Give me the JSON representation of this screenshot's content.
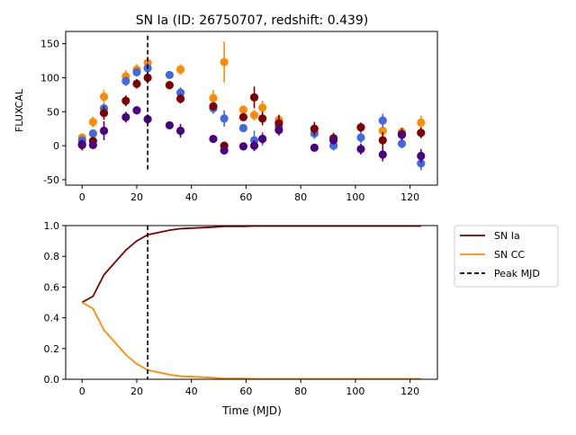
{
  "chart_data": [
    {
      "type": "scatter",
      "title": "SN Ia (ID: 26750707, redshift: 0.439)",
      "xlabel": "",
      "ylabel": "FLUXCAL",
      "xlim": [
        -6,
        130
      ],
      "ylim": [
        -58,
        168
      ],
      "xticks": [
        0,
        20,
        40,
        60,
        80,
        100,
        120
      ],
      "yticks": [
        -50,
        0,
        50,
        100,
        150
      ],
      "peak_mjd": 24,
      "colors": {
        "orange": "#ff8c00",
        "blue": "#4169e1",
        "darkred": "#800000",
        "indigo": "#4b0082"
      },
      "series": [
        {
          "color": "#ff8c00",
          "x": [
            0,
            4,
            8,
            16,
            20,
            24,
            36,
            48,
            52,
            59,
            63,
            66,
            72,
            110,
            117,
            124
          ],
          "y": [
            12,
            35,
            72,
            102,
            112,
            122,
            112,
            70,
            123,
            53,
            45,
            56,
            38,
            22,
            20,
            34
          ],
          "err": [
            6,
            8,
            10,
            9,
            8,
            9,
            8,
            12,
            30,
            6,
            8,
            10,
            8,
            8,
            7,
            10
          ]
        },
        {
          "color": "#4169e1",
          "x": [
            0,
            4,
            8,
            16,
            20,
            24,
            32,
            36,
            48,
            52,
            59,
            63,
            66,
            72,
            85,
            92,
            102,
            110,
            117,
            124
          ],
          "y": [
            8,
            18,
            55,
            95,
            108,
            114,
            104,
            78,
            55,
            40,
            26,
            8,
            10,
            28,
            18,
            0,
            12,
            37,
            3,
            -26
          ],
          "err": [
            5,
            6,
            7,
            7,
            6,
            8,
            5,
            8,
            8,
            12,
            5,
            14,
            10,
            8,
            8,
            7,
            8,
            10,
            7,
            10
          ]
        },
        {
          "color": "#800000",
          "x": [
            0,
            4,
            8,
            16,
            20,
            24,
            32,
            36,
            48,
            52,
            59,
            63,
            66,
            72,
            85,
            92,
            102,
            110,
            117,
            124
          ],
          "y": [
            1,
            7,
            48,
            66,
            91,
            100,
            89,
            69,
            58,
            0,
            42,
            71,
            40,
            33,
            25,
            11,
            27,
            8,
            17,
            19
          ],
          "err": [
            8,
            6,
            10,
            8,
            7,
            8,
            6,
            7,
            6,
            5,
            6,
            16,
            10,
            12,
            10,
            8,
            7,
            12,
            9,
            8
          ]
        },
        {
          "color": "#4b0082",
          "x": [
            0,
            4,
            8,
            16,
            20,
            24,
            32,
            36,
            48,
            52,
            59,
            63,
            66,
            72,
            85,
            92,
            102,
            110,
            117,
            124
          ],
          "y": [
            2,
            1,
            22,
            42,
            52,
            39,
            30,
            22,
            10,
            -7,
            -1,
            0,
            10,
            23,
            -3,
            8,
            -5,
            -13,
            16,
            -15
          ],
          "err": [
            6,
            5,
            14,
            8,
            6,
            7,
            5,
            10,
            5,
            6,
            5,
            8,
            7,
            8,
            4,
            6,
            8,
            10,
            6,
            10
          ]
        }
      ]
    },
    {
      "type": "line",
      "title": "",
      "xlabel": "Time (MJD)",
      "ylabel": "",
      "xlim": [
        -6,
        130
      ],
      "ylim": [
        0,
        1
      ],
      "xticks": [
        0,
        20,
        40,
        60,
        80,
        100,
        120
      ],
      "yticks": [
        0.0,
        0.2,
        0.4,
        0.6,
        0.8,
        1.0
      ],
      "peak_mjd": 24,
      "legend_position": "outside-right",
      "legend": [
        {
          "label": "SN Ia",
          "color": "#800000",
          "style": "solid"
        },
        {
          "label": "SN CC",
          "color": "#ff8c00",
          "style": "solid"
        },
        {
          "label": "Peak MJD",
          "color": "#000000",
          "style": "dashed"
        }
      ],
      "x": [
        0,
        4,
        8,
        16,
        20,
        24,
        32,
        36,
        48,
        52,
        59,
        63,
        66,
        72,
        85,
        92,
        102,
        110,
        117,
        124
      ],
      "series": [
        {
          "name": "SN Ia",
          "color": "#800000",
          "values": [
            0.5,
            0.54,
            0.68,
            0.84,
            0.9,
            0.94,
            0.97,
            0.98,
            0.99,
            0.995,
            0.995,
            0.997,
            0.997,
            0.997,
            0.997,
            0.997,
            0.997,
            0.997,
            0.997,
            0.997
          ]
        },
        {
          "name": "SN CC",
          "color": "#ff8c00",
          "values": [
            0.5,
            0.46,
            0.32,
            0.16,
            0.1,
            0.06,
            0.03,
            0.02,
            0.01,
            0.005,
            0.005,
            0.003,
            0.003,
            0.003,
            0.003,
            0.003,
            0.003,
            0.003,
            0.003,
            0.003
          ]
        }
      ]
    }
  ]
}
